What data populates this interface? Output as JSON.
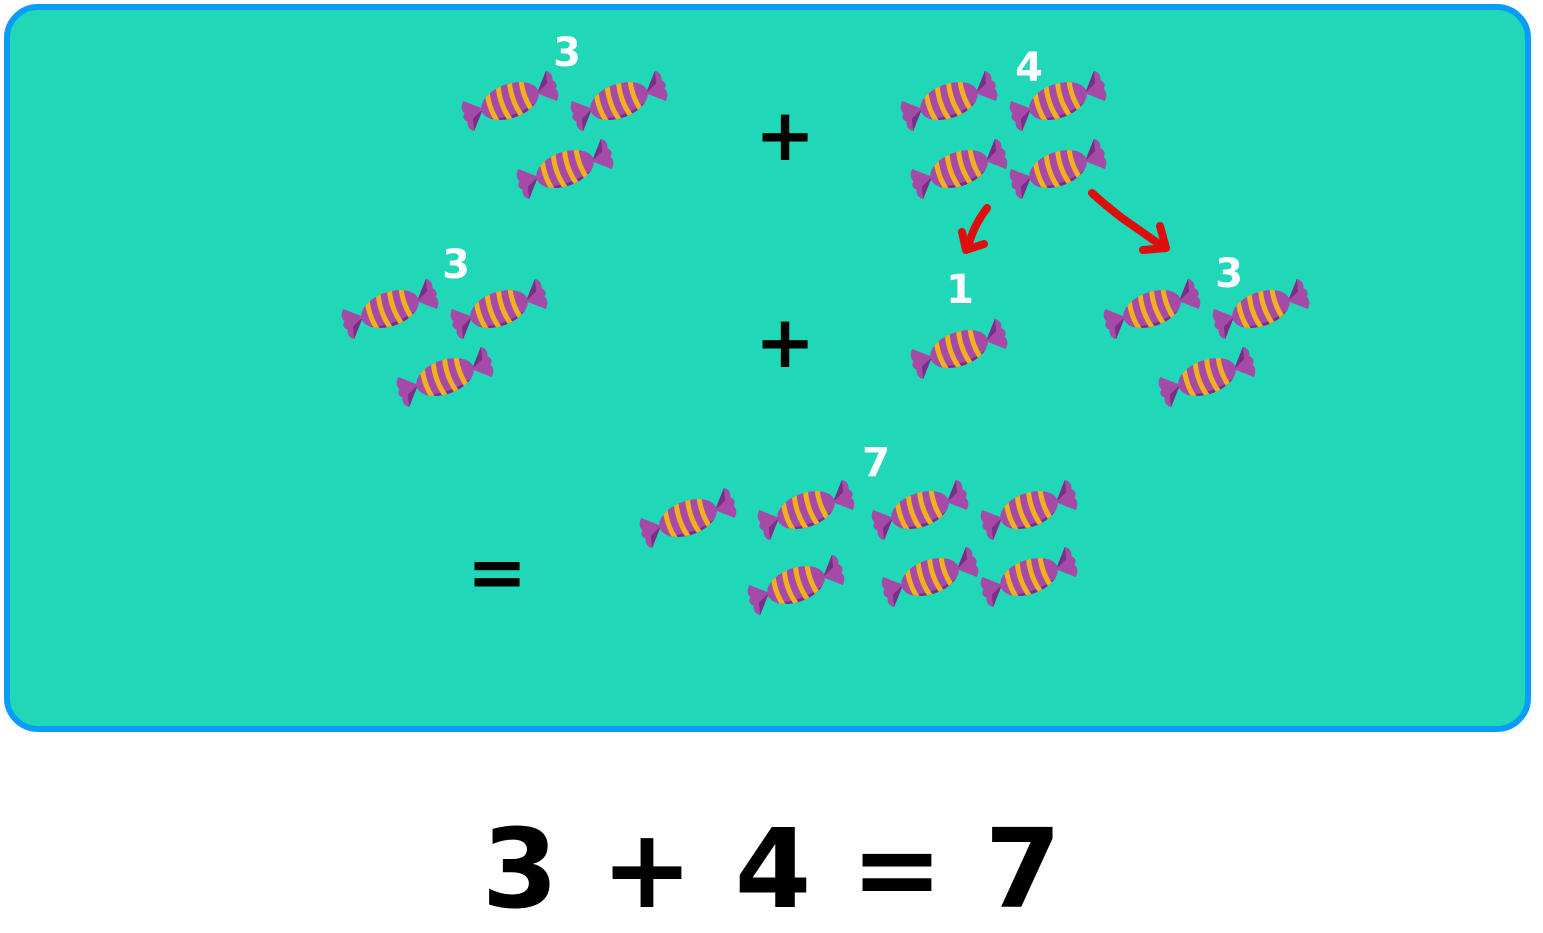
{
  "colors": {
    "background": "#20d7b8",
    "border": "#0a9bfb",
    "wrapper": "#a64aa8",
    "wrapper_dark": "#7b2e86",
    "stripe": "#f2b01e",
    "arrow": "#e00d0d"
  },
  "labels": {
    "top_left_count": "3",
    "top_right_count": "4",
    "middle_left_count": "3",
    "middle_split_one": "1",
    "middle_split_three": "3",
    "result_count": "7"
  },
  "operators": {
    "plus_top": "+",
    "plus_middle": "+",
    "equals": "="
  },
  "equation": {
    "addend_1": "3",
    "plus": "+",
    "addend_2": "4",
    "equals": "=",
    "sum": "7"
  },
  "groups": {
    "top_left_candies": 3,
    "top_right_candies": 4,
    "middle_left_candies": 3,
    "middle_single_candies": 1,
    "middle_right_candies": 3,
    "result_candies": 7
  },
  "icons": {
    "candy": "wrapped-candy-icon",
    "arrow": "curved-arrow-icon"
  }
}
